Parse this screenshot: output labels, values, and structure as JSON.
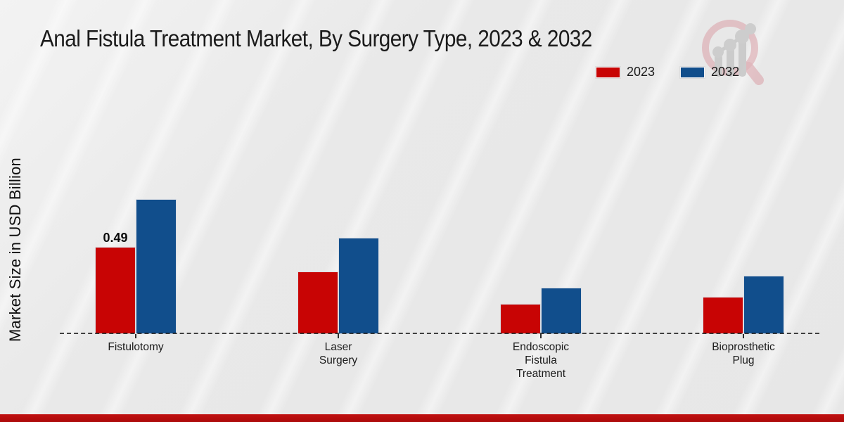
{
  "page": {
    "title": "Anal Fistula Treatment Market, By Surgery Type, 2023 & 2032"
  },
  "chart_data": {
    "type": "bar",
    "title": "Anal Fistula Treatment Market, By Surgery Type, 2023 & 2032",
    "xlabel": "",
    "ylabel": "Market Size in USD Billion",
    "categories": [
      "Fistulotomy",
      "Laser Surgery",
      "Endoscopic Fistula Treatment",
      "Bioprosthetic Plug"
    ],
    "category_label_lines": [
      [
        "Fistulotomy"
      ],
      [
        "Laser",
        "Surgery"
      ],
      [
        "Endoscopic",
        "Fistula",
        "Treatment"
      ],
      [
        "Bioprosthetic",
        "Plug"
      ]
    ],
    "series": [
      {
        "name": "2023",
        "color": "#c80404",
        "values": [
          0.49,
          0.35,
          0.17,
          0.21
        ]
      },
      {
        "name": "2032",
        "color": "#114e8c",
        "values": [
          0.76,
          0.54,
          0.26,
          0.33
        ]
      }
    ],
    "annotations": [
      {
        "series_index": 0,
        "category_index": 0,
        "text": "0.49"
      }
    ],
    "ylim": [
      0,
      0.95
    ],
    "grid": false,
    "legend_position": "top-right",
    "baseline_style": "dashed",
    "axis_labels_visible": {
      "y_ticks": false,
      "x_ticks": true
    }
  },
  "colors": {
    "background": "#e9e9e9",
    "series_2023": "#c80404",
    "series_2032": "#114e8c",
    "bottom_strip": "#b80c0c",
    "title_text": "#1b1b1b"
  },
  "watermark": {
    "icon": "magnifier-bar-chart-logo"
  }
}
